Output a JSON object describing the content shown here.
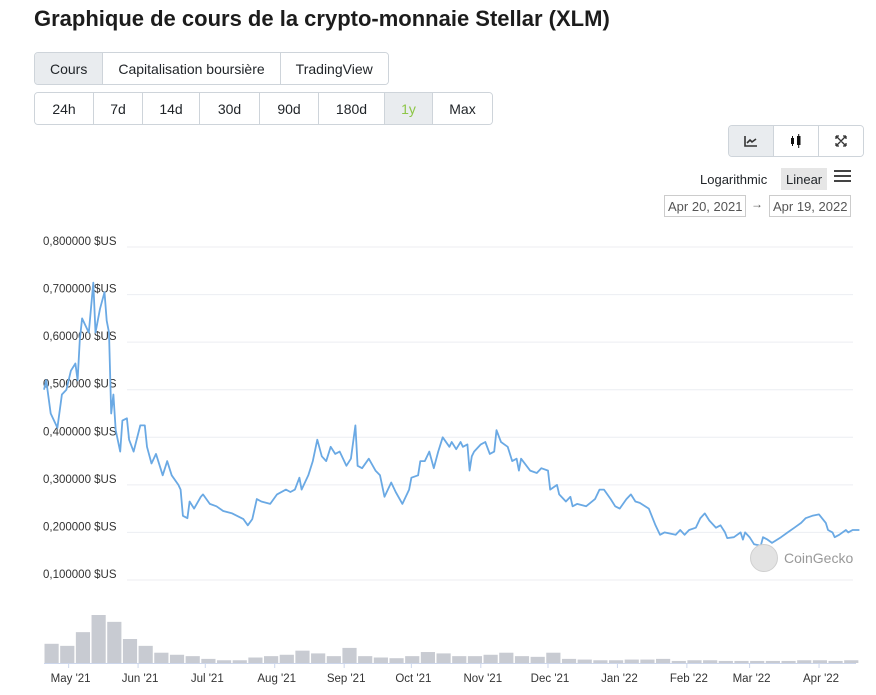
{
  "title": "Graphique de cours de la crypto-monnaie Stellar (XLM)",
  "tabs": [
    {
      "label": "Cours",
      "active": true
    },
    {
      "label": "Capitalisation boursière",
      "active": false
    },
    {
      "label": "TradingView",
      "active": false
    }
  ],
  "ranges": [
    {
      "label": "24h"
    },
    {
      "label": "7d"
    },
    {
      "label": "14d"
    },
    {
      "label": "30d"
    },
    {
      "label": "90d"
    },
    {
      "label": "180d"
    },
    {
      "label": "1y",
      "active": true
    },
    {
      "label": "Max"
    }
  ],
  "chart_type_buttons": [
    {
      "icon": "line-chart-icon",
      "active": true
    },
    {
      "icon": "candlestick-icon"
    },
    {
      "icon": "fullscreen-icon"
    }
  ],
  "scale": {
    "logarithmic": "Logarithmic",
    "linear": "Linear",
    "selected": "Linear"
  },
  "date_range": {
    "from": "Apr 20, 2021",
    "arrow": "→",
    "to": "Apr 19, 2022"
  },
  "watermark": "CoinGecko",
  "colors": {
    "line": "#6aa9e4",
    "volume": "#c8cbd2",
    "active_range": "#8dc647",
    "grid": "#eceef2"
  },
  "chart_data": {
    "type": "line",
    "x_range": [
      "2021-04-20",
      "2022-04-19"
    ],
    "ylim": [
      0.1,
      0.8
    ],
    "yticks": [
      {
        "v": 0.8,
        "label": "0,800000 $US"
      },
      {
        "v": 0.7,
        "label": "0,700000 $US"
      },
      {
        "v": 0.6,
        "label": "0,600000 $US"
      },
      {
        "v": 0.5,
        "label": "0,500000 $US"
      },
      {
        "v": 0.4,
        "label": "0,400000 $US"
      },
      {
        "v": 0.3,
        "label": "0,300000 $US"
      },
      {
        "v": 0.2,
        "label": "0,200000 $US"
      },
      {
        "v": 0.1,
        "label": "0,100000 $US"
      }
    ],
    "xticks": [
      {
        "d": "2021-05-01",
        "label": "May '21"
      },
      {
        "d": "2021-06-01",
        "label": "Jun '21"
      },
      {
        "d": "2021-07-01",
        "label": "Jul '21"
      },
      {
        "d": "2021-08-01",
        "label": "Aug '21"
      },
      {
        "d": "2021-09-01",
        "label": "Sep '21"
      },
      {
        "d": "2021-10-01",
        "label": "Oct '21"
      },
      {
        "d": "2021-11-01",
        "label": "Nov '21"
      },
      {
        "d": "2021-12-01",
        "label": "Dec '21"
      },
      {
        "d": "2022-01-01",
        "label": "Jan '22"
      },
      {
        "d": "2022-02-01",
        "label": "Feb '22"
      },
      {
        "d": "2022-03-01",
        "label": "Mar '22"
      },
      {
        "d": "2022-04-01",
        "label": "Apr '22"
      }
    ],
    "grid": true,
    "price": [
      [
        "2021-04-20",
        0.5
      ],
      [
        "2021-04-21",
        0.52
      ],
      [
        "2021-04-23",
        0.45
      ],
      [
        "2021-04-26",
        0.42
      ],
      [
        "2021-04-28",
        0.49
      ],
      [
        "2021-04-30",
        0.5
      ],
      [
        "2021-05-02",
        0.54
      ],
      [
        "2021-05-04",
        0.555
      ],
      [
        "2021-05-05",
        0.52
      ],
      [
        "2021-05-06",
        0.605
      ],
      [
        "2021-05-07",
        0.65
      ],
      [
        "2021-05-10",
        0.62
      ],
      [
        "2021-05-12",
        0.725
      ],
      [
        "2021-05-13",
        0.62
      ],
      [
        "2021-05-15",
        0.67
      ],
      [
        "2021-05-17",
        0.705
      ],
      [
        "2021-05-18",
        0.645
      ],
      [
        "2021-05-19",
        0.62
      ],
      [
        "2021-05-20",
        0.45
      ],
      [
        "2021-05-21",
        0.49
      ],
      [
        "2021-05-22",
        0.415
      ],
      [
        "2021-05-24",
        0.37
      ],
      [
        "2021-05-25",
        0.435
      ],
      [
        "2021-05-27",
        0.44
      ],
      [
        "2021-05-28",
        0.395
      ],
      [
        "2021-05-30",
        0.37
      ],
      [
        "2021-06-02",
        0.425
      ],
      [
        "2021-06-04",
        0.425
      ],
      [
        "2021-06-05",
        0.38
      ],
      [
        "2021-06-07",
        0.345
      ],
      [
        "2021-06-09",
        0.365
      ],
      [
        "2021-06-12",
        0.32
      ],
      [
        "2021-06-14",
        0.35
      ],
      [
        "2021-06-16",
        0.32
      ],
      [
        "2021-06-19",
        0.3
      ],
      [
        "2021-06-20",
        0.29
      ],
      [
        "2021-06-21",
        0.235
      ],
      [
        "2021-06-23",
        0.23
      ],
      [
        "2021-06-24",
        0.265
      ],
      [
        "2021-06-26",
        0.25
      ],
      [
        "2021-06-29",
        0.275
      ],
      [
        "2021-06-30",
        0.28
      ],
      [
        "2021-07-03",
        0.26
      ],
      [
        "2021-07-06",
        0.255
      ],
      [
        "2021-07-09",
        0.245
      ],
      [
        "2021-07-13",
        0.24
      ],
      [
        "2021-07-18",
        0.228
      ],
      [
        "2021-07-20",
        0.215
      ],
      [
        "2021-07-22",
        0.228
      ],
      [
        "2021-07-24",
        0.27
      ],
      [
        "2021-07-26",
        0.265
      ],
      [
        "2021-07-30",
        0.26
      ],
      [
        "2021-08-02",
        0.28
      ],
      [
        "2021-08-06",
        0.29
      ],
      [
        "2021-08-08",
        0.285
      ],
      [
        "2021-08-10",
        0.29
      ],
      [
        "2021-08-12",
        0.315
      ],
      [
        "2021-08-13",
        0.29
      ],
      [
        "2021-08-16",
        0.32
      ],
      [
        "2021-08-18",
        0.35
      ],
      [
        "2021-08-20",
        0.395
      ],
      [
        "2021-08-22",
        0.36
      ],
      [
        "2021-08-24",
        0.35
      ],
      [
        "2021-08-26",
        0.38
      ],
      [
        "2021-08-28",
        0.365
      ],
      [
        "2021-08-30",
        0.37
      ],
      [
        "2021-09-02",
        0.34
      ],
      [
        "2021-09-04",
        0.355
      ],
      [
        "2021-09-06",
        0.425
      ],
      [
        "2021-09-07",
        0.34
      ],
      [
        "2021-09-09",
        0.335
      ],
      [
        "2021-09-12",
        0.355
      ],
      [
        "2021-09-15",
        0.33
      ],
      [
        "2021-09-17",
        0.32
      ],
      [
        "2021-09-19",
        0.275
      ],
      [
        "2021-09-22",
        0.305
      ],
      [
        "2021-09-24",
        0.285
      ],
      [
        "2021-09-27",
        0.26
      ],
      [
        "2021-09-30",
        0.29
      ],
      [
        "2021-10-01",
        0.315
      ],
      [
        "2021-10-04",
        0.32
      ],
      [
        "2021-10-05",
        0.35
      ],
      [
        "2021-10-07",
        0.35
      ],
      [
        "2021-10-09",
        0.37
      ],
      [
        "2021-10-11",
        0.335
      ],
      [
        "2021-10-13",
        0.37
      ],
      [
        "2021-10-15",
        0.4
      ],
      [
        "2021-10-18",
        0.38
      ],
      [
        "2021-10-19",
        0.39
      ],
      [
        "2021-10-21",
        0.375
      ],
      [
        "2021-10-23",
        0.39
      ],
      [
        "2021-10-24",
        0.38
      ],
      [
        "2021-10-26",
        0.385
      ],
      [
        "2021-10-27",
        0.33
      ],
      [
        "2021-10-28",
        0.36
      ],
      [
        "2021-10-29",
        0.37
      ],
      [
        "2021-11-01",
        0.385
      ],
      [
        "2021-11-03",
        0.39
      ],
      [
        "2021-11-05",
        0.365
      ],
      [
        "2021-11-07",
        0.37
      ],
      [
        "2021-11-08",
        0.415
      ],
      [
        "2021-11-10",
        0.39
      ],
      [
        "2021-11-13",
        0.38
      ],
      [
        "2021-11-15",
        0.35
      ],
      [
        "2021-11-17",
        0.355
      ],
      [
        "2021-11-18",
        0.33
      ],
      [
        "2021-11-19",
        0.355
      ],
      [
        "2021-11-23",
        0.33
      ],
      [
        "2021-11-26",
        0.325
      ],
      [
        "2021-11-28",
        0.335
      ],
      [
        "2021-12-01",
        0.33
      ],
      [
        "2021-12-02",
        0.29
      ],
      [
        "2021-12-05",
        0.3
      ],
      [
        "2021-12-06",
        0.28
      ],
      [
        "2021-12-09",
        0.265
      ],
      [
        "2021-12-11",
        0.275
      ],
      [
        "2021-12-12",
        0.255
      ],
      [
        "2021-12-14",
        0.26
      ],
      [
        "2021-12-18",
        0.255
      ],
      [
        "2021-12-22",
        0.27
      ],
      [
        "2021-12-24",
        0.29
      ],
      [
        "2021-12-26",
        0.29
      ],
      [
        "2021-12-29",
        0.27
      ],
      [
        "2021-12-31",
        0.255
      ],
      [
        "2022-01-02",
        0.25
      ],
      [
        "2022-01-05",
        0.27
      ],
      [
        "2022-01-07",
        0.28
      ],
      [
        "2022-01-09",
        0.265
      ],
      [
        "2022-01-11",
        0.262
      ],
      [
        "2022-01-15",
        0.25
      ],
      [
        "2022-01-18",
        0.215
      ],
      [
        "2022-01-20",
        0.195
      ],
      [
        "2022-01-22",
        0.2
      ],
      [
        "2022-01-27",
        0.195
      ],
      [
        "2022-01-29",
        0.205
      ],
      [
        "2022-01-31",
        0.195
      ],
      [
        "2022-02-02",
        0.205
      ],
      [
        "2022-02-05",
        0.21
      ],
      [
        "2022-02-07",
        0.23
      ],
      [
        "2022-02-09",
        0.24
      ],
      [
        "2022-02-11",
        0.225
      ],
      [
        "2022-02-14",
        0.21
      ],
      [
        "2022-02-16",
        0.215
      ],
      [
        "2022-02-18",
        0.2
      ],
      [
        "2022-02-19",
        0.188
      ],
      [
        "2022-02-22",
        0.19
      ],
      [
        "2022-02-25",
        0.2
      ],
      [
        "2022-02-26",
        0.185
      ],
      [
        "2022-02-27",
        0.2
      ],
      [
        "2022-03-01",
        0.19
      ],
      [
        "2022-03-03",
        0.175
      ],
      [
        "2022-03-06",
        0.172
      ],
      [
        "2022-03-07",
        0.19
      ],
      [
        "2022-03-09",
        0.185
      ],
      [
        "2022-03-11",
        0.178
      ],
      [
        "2022-03-15",
        0.19
      ],
      [
        "2022-03-18",
        0.2
      ],
      [
        "2022-03-21",
        0.21
      ],
      [
        "2022-03-24",
        0.22
      ],
      [
        "2022-03-26",
        0.23
      ],
      [
        "2022-03-29",
        0.235
      ],
      [
        "2022-04-01",
        0.238
      ],
      [
        "2022-04-04",
        0.22
      ],
      [
        "2022-04-05",
        0.205
      ],
      [
        "2022-04-07",
        0.2
      ],
      [
        "2022-04-08",
        0.19
      ],
      [
        "2022-04-10",
        0.195
      ],
      [
        "2022-04-13",
        0.205
      ],
      [
        "2022-04-14",
        0.2
      ],
      [
        "2022-04-16",
        0.205
      ],
      [
        "2022-04-19",
        0.205
      ]
    ],
    "volume_weekly_relative": [
      28,
      25,
      45,
      70,
      60,
      35,
      25,
      15,
      12,
      10,
      6,
      4,
      4,
      8,
      10,
      12,
      18,
      14,
      10,
      22,
      10,
      8,
      7,
      10,
      16,
      14,
      10,
      10,
      12,
      15,
      10,
      9,
      15,
      6,
      5,
      4,
      4,
      5,
      5,
      6,
      3,
      4,
      4,
      3,
      3,
      3,
      3,
      3,
      4,
      4,
      3,
      4
    ]
  }
}
